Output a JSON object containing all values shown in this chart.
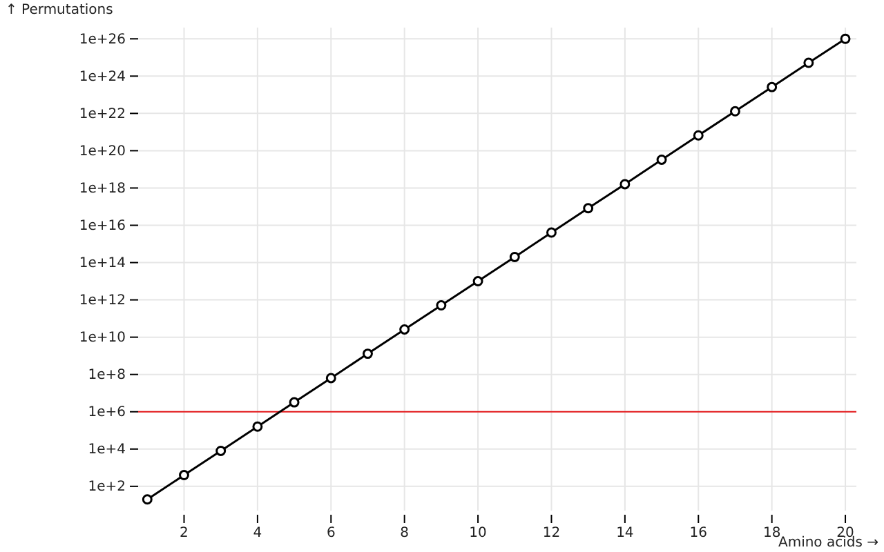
{
  "chart_data": {
    "type": "line",
    "xlabel": "Amino acids →",
    "ylabel": "↑ Permutations",
    "x": [
      1,
      2,
      3,
      4,
      5,
      6,
      7,
      8,
      9,
      10,
      11,
      12,
      13,
      14,
      15,
      16,
      17,
      18,
      19,
      20
    ],
    "series": [
      {
        "color": "#000000",
        "values": [
          20,
          400,
          8000,
          160000.0,
          3200000.0,
          64000000.0,
          1300000000.0,
          26000000000.0,
          510000000000.0,
          10000000000000.0,
          200000000000000.0,
          4100000000000000.0,
          8.2e+16,
          1.6e+18,
          3.3e+19,
          6.6e+20,
          1.3e+22,
          2.6e+23,
          5.2e+24,
          1e+26
        ]
      }
    ],
    "log": "y",
    "xlim": [
      0.75,
      20.3
    ],
    "ylim": [
      5,
      4e+26
    ],
    "xticks": [
      2,
      4,
      6,
      8,
      10,
      12,
      14,
      16,
      18,
      20
    ],
    "yticks": [
      {
        "value": 100,
        "label": "1e+2"
      },
      {
        "value": 10000.0,
        "label": "1e+4"
      },
      {
        "value": 1000000.0,
        "label": "1e+6"
      },
      {
        "value": 100000000.0,
        "label": "1e+8"
      },
      {
        "value": 10000000000.0,
        "label": "1e+10"
      },
      {
        "value": 1000000000000.0,
        "label": "1e+12"
      },
      {
        "value": 100000000000000.0,
        "label": "1e+14"
      },
      {
        "value": 1e+16,
        "label": "1e+16"
      },
      {
        "value": 1e+18,
        "label": "1e+18"
      },
      {
        "value": 1e+20,
        "label": "1e+20"
      },
      {
        "value": 1e+22,
        "label": "1e+22"
      },
      {
        "value": 1e+24,
        "label": "1e+24"
      },
      {
        "value": 1e+26,
        "label": "1e+26"
      }
    ],
    "grid": true,
    "marker": "circle",
    "line_style": "solid",
    "ref_lines": [
      {
        "axis": "y",
        "value": 1000000.0,
        "color": "#e41a1c"
      }
    ]
  }
}
